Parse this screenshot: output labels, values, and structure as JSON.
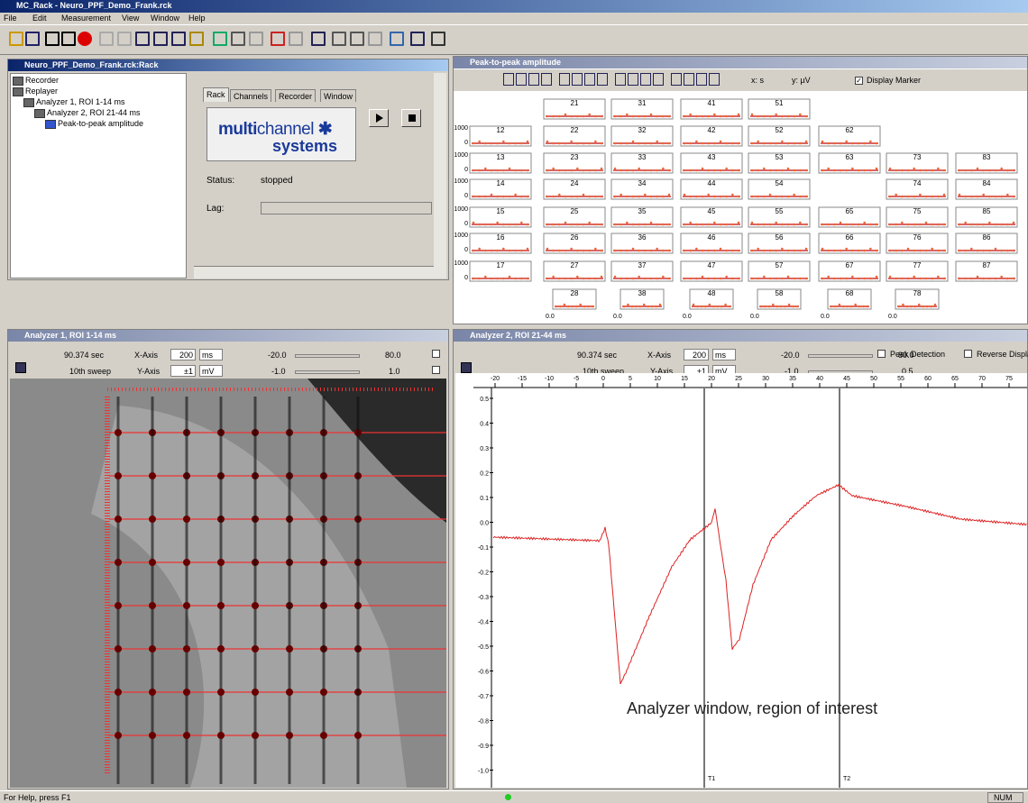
{
  "window": {
    "title": "MC_Rack - Neuro_PPF_Demo_Frank.rck"
  },
  "menu": [
    "File",
    "Edit",
    "Measurement",
    "View",
    "Window",
    "Help"
  ],
  "rack": {
    "title": "Neuro_PPF_Demo_Frank.rck:Rack",
    "tree": [
      "Recorder",
      "Replayer",
      "Analyzer 1, ROI 1-14 ms",
      "Analyzer 2, ROI 21-44 ms",
      "Peak-to-peak amplitude"
    ],
    "tabs": [
      "Rack",
      "Channels",
      "Recorder",
      "Window"
    ],
    "logo": [
      "multi",
      "channel",
      "systems"
    ],
    "status_label": "Status:",
    "status_value": "stopped",
    "lag_label": "Lag:"
  },
  "peak": {
    "title": "Peak-to-peak amplitude",
    "x_unit": "x: s",
    "y_unit": "y: µV",
    "display_marker": "Display Marker",
    "y_top": "1000",
    "y_bottom": "0",
    "x_start": "0.0",
    "grid": [
      [
        null,
        "21",
        "31",
        "41",
        "51",
        null,
        null,
        null
      ],
      [
        "12",
        "22",
        "32",
        "42",
        "52",
        "62",
        null,
        null
      ],
      [
        "13",
        "23",
        "33",
        "43",
        "53",
        "63",
        "73",
        "83"
      ],
      [
        "14",
        "24",
        "34",
        "44",
        "54",
        null,
        "74",
        "84"
      ],
      [
        "15",
        "25",
        "35",
        "45",
        "55",
        "65",
        "75",
        "85"
      ],
      [
        "16",
        "26",
        "36",
        "46",
        "56",
        "66",
        "76",
        "86"
      ],
      [
        "17",
        "27",
        "37",
        "47",
        "57",
        "67",
        "77",
        "87"
      ],
      [
        null,
        "28",
        "38",
        "48",
        "58",
        "68",
        "78",
        null
      ]
    ]
  },
  "analyzer1": {
    "title": "Analyzer 1, ROI 1-14 ms",
    "time": "90.374 sec",
    "x_axis": "X-Axis",
    "x_range": "200",
    "x_unit": "ms",
    "x_min": "-20.0",
    "x_max": "80.0",
    "sweep": "10th sweep",
    "y_axis": "Y-Axis",
    "y_range": "±1",
    "y_unit": "mV",
    "y_min": "-1.0",
    "y_max": "1.0"
  },
  "analyzer2": {
    "title": "Analyzer 2, ROI 21-44 ms",
    "time": "90.374 sec",
    "x_axis": "X-Axis",
    "x_range": "200",
    "x_unit": "ms",
    "x_min": "-20.0",
    "x_max": "80.0",
    "peak_detection": "Peak Detection",
    "reverse_display": "Reverse Display",
    "sweep": "10th sweep",
    "y_axis": "Y-Axis",
    "y_range": "±1",
    "y_unit": "mV",
    "y_min": "-1.0",
    "y_max": "0.5",
    "x_ticks": [
      "-20",
      "-15",
      "-10",
      "-5",
      "0",
      "5",
      "10",
      "15",
      "20",
      "25",
      "30",
      "35",
      "40",
      "45",
      "50",
      "55",
      "60",
      "65",
      "70",
      "75"
    ],
    "y_ticks": [
      "0.5",
      "0.4",
      "0.3",
      "0.2",
      "0.1",
      "0.0",
      "-0.1",
      "-0.2",
      "-0.3",
      "-0.4",
      "-0.5",
      "-0.6",
      "-0.7",
      "-0.8",
      "-0.9",
      "-1.0"
    ],
    "markers": [
      "T1",
      "T2"
    ],
    "annotation": "Analyzer window, region of interest"
  },
  "status": {
    "help": "For Help, press F1",
    "num": "NUM"
  }
}
